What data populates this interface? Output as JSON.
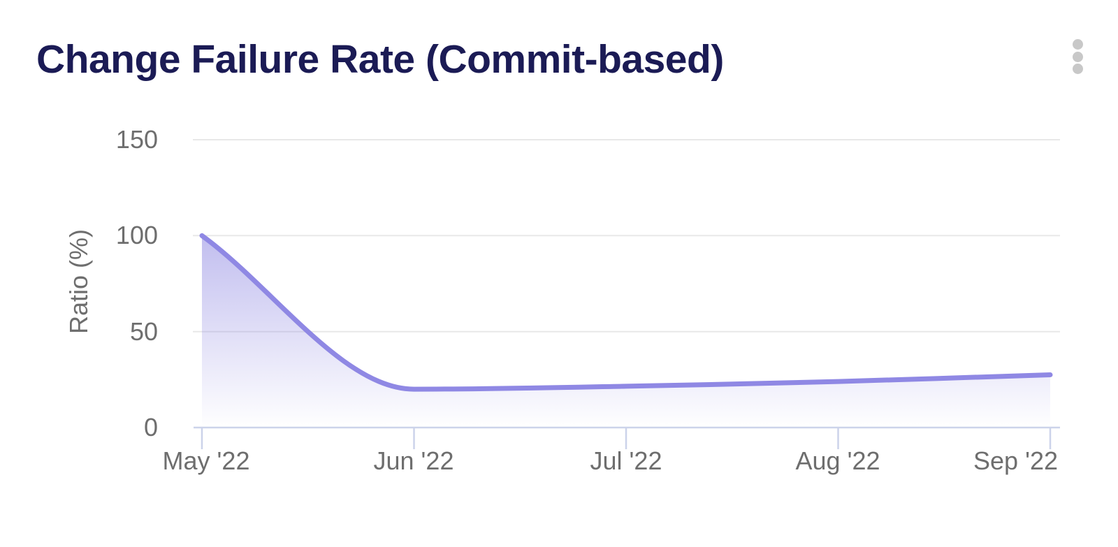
{
  "header": {
    "title": "Change Failure Rate (Commit-based)",
    "menu_icon": "kebab-menu-icon"
  },
  "chart_data": {
    "type": "area",
    "title": "Change Failure Rate (Commit-based)",
    "categories": [
      "May '22",
      "Jun '22",
      "Jul '22",
      "Aug '22",
      "Sep '22"
    ],
    "series": [
      {
        "name": "Change Failure Rate",
        "values": [
          100,
          20,
          21.5,
          24,
          27.5
        ]
      }
    ],
    "xlabel": "",
    "ylabel": "Ratio (%)",
    "ylim": [
      0,
      150
    ],
    "yticks": [
      150,
      100,
      50,
      0
    ],
    "grid": "horizontal",
    "legend": "none",
    "curve": "monotone",
    "colors": {
      "line": "#8f88e4",
      "fill_top": "rgba(136,129,224,0.52)",
      "fill_bottom": "rgba(136,129,224,0)",
      "axis": "#ccd3ea",
      "gridline": "#e8e8e8",
      "tick_text": "#6e6e6e",
      "title_text": "#1b1b55"
    }
  }
}
